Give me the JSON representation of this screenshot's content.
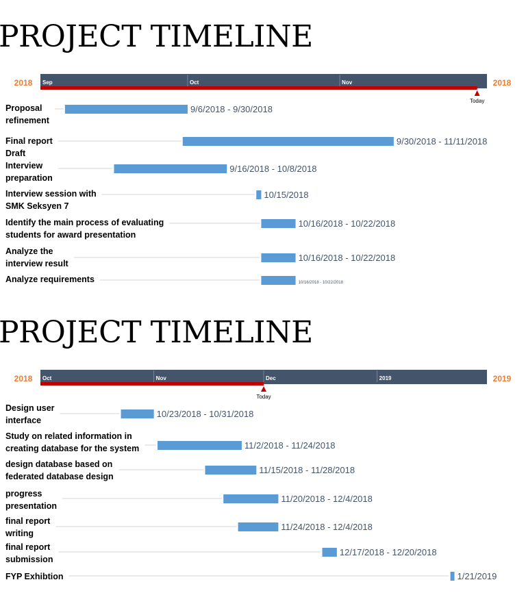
{
  "chart_data": [
    {
      "type": "gantt",
      "title": "PROJECT TIMELINE",
      "year_left": "2018",
      "year_right": "2018",
      "months": [
        "Sep",
        "Oct",
        "Nov"
      ],
      "today_label": "Today",
      "tasks": [
        {
          "label": [
            "Proposal",
            "refinement"
          ],
          "start": "2018-09-06",
          "end": "2018-09-30",
          "range": "9/6/2018 - 9/30/2018"
        },
        {
          "label": [
            "Final report",
            "Draft"
          ],
          "start": "2018-09-30",
          "end": "2018-11-11",
          "range": "9/30/2018 - 11/11/2018"
        },
        {
          "label": [
            "Interview",
            "preparation"
          ],
          "start": "2018-09-16",
          "end": "2018-10-08",
          "range": "9/16/2018 - 10/8/2018"
        },
        {
          "label": [
            "Interview session with",
            "SMK Seksyen 7"
          ],
          "start": "2018-10-15",
          "end": "2018-10-15",
          "range": "10/15/2018"
        },
        {
          "label": [
            "Identify the main process of evaluating",
            "students for award presentation"
          ],
          "start": "2018-10-16",
          "end": "2018-10-22",
          "range": "10/16/2018 - 10/22/2018"
        },
        {
          "label": [
            "Analyze the",
            "interview result"
          ],
          "start": "2018-10-16",
          "end": "2018-10-22",
          "range": "10/16/2018 - 10/22/2018"
        },
        {
          "label": [
            "Analyze requirements"
          ],
          "start": "2018-10-16",
          "end": "2018-10-22",
          "range": "10/16/2018 - 10/22/2018"
        }
      ],
      "colors": {
        "header": "#44546a",
        "today": "#c00000",
        "bar": "#5b9bd5",
        "year": "#ed7d31",
        "range_text": "#44546a"
      }
    },
    {
      "type": "gantt",
      "title": "PROJECT TIMELINE",
      "year_left": "2018",
      "year_right": "2019",
      "months": [
        "Oct",
        "Nov",
        "Dec",
        "2019"
      ],
      "today_label": "Today",
      "tasks": [
        {
          "label": [
            "Design user",
            "interface"
          ],
          "start": "2018-10-23",
          "end": "2018-10-31",
          "range": "10/23/2018 - 10/31/2018"
        },
        {
          "label": [
            "Study on related information in",
            "creating database for the system"
          ],
          "start": "2018-11-02",
          "end": "2018-11-24",
          "range": "11/2/2018 - 11/24/2018"
        },
        {
          "label": [
            "design database based on",
            "federated database design"
          ],
          "start": "2018-11-15",
          "end": "2018-11-28",
          "range": "11/15/2018 - 11/28/2018"
        },
        {
          "label": [
            "progress",
            "presentation"
          ],
          "start": "2018-11-20",
          "end": "2018-12-04",
          "range": "11/20/2018 - 12/4/2018"
        },
        {
          "label": [
            "final report",
            "writing"
          ],
          "start": "2018-11-24",
          "end": "2018-12-04",
          "range": "11/24/2018 - 12/4/2018"
        },
        {
          "label": [
            "final report",
            "submission"
          ],
          "start": "2018-12-17",
          "end": "2018-12-20",
          "range": "12/17/2018 - 12/20/2018"
        },
        {
          "label": [
            "FYP Exhibtion"
          ],
          "start": "2019-01-21",
          "end": "2019-01-21",
          "range": "1/21/2019"
        }
      ],
      "colors": {
        "header": "#44546a",
        "today": "#c00000",
        "bar": "#5b9bd5",
        "year": "#ed7d31",
        "range_text": "#44546a"
      }
    }
  ]
}
